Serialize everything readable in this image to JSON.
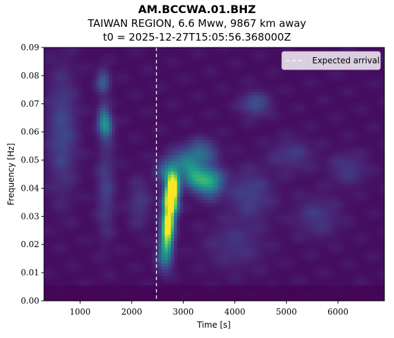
{
  "chart_data": {
    "type": "heatmap",
    "title": "AM.BCCWA.01.BHZ",
    "subtitle_lines": [
      "TAIWAN REGION, 6.6 Mww, 9867 km away",
      "t0 = 2025-12-27T15:05:56.368000Z"
    ],
    "xlabel": "Time [s]",
    "ylabel": "Frequency [Hz]",
    "xlim": [
      300,
      6900
    ],
    "ylim": [
      0,
      0.09
    ],
    "x_ticks": [
      1000,
      2000,
      3000,
      4000,
      5000,
      6000
    ],
    "x_tick_labels": [
      "1000",
      "2000",
      "3000",
      "4000",
      "5000",
      "6000"
    ],
    "y_ticks": [
      0,
      0.01,
      0.02,
      0.03,
      0.04,
      0.05,
      0.06,
      0.07,
      0.08,
      0.09
    ],
    "y_tick_labels": [
      "0.00",
      "0.01",
      "0.02",
      "0.03",
      "0.04",
      "0.05",
      "0.06",
      "0.07",
      "0.08",
      "0.09"
    ],
    "colormap": "viridis",
    "background_color": "#440154",
    "expected_arrival": {
      "label": "Expected arrival",
      "time": 2480,
      "color": "#ffffff",
      "style": "dashed"
    },
    "legend_position": "upper-right",
    "energy_blobs": [
      {
        "t": 2800,
        "f": 0.0415,
        "st": 90,
        "sf": 0.0035,
        "amp": 1.0
      },
      {
        "t": 2760,
        "f": 0.0385,
        "st": 70,
        "sf": 0.002,
        "amp": 0.75
      },
      {
        "t": 2720,
        "f": 0.0355,
        "st": 90,
        "sf": 0.002,
        "amp": 0.55
      },
      {
        "t": 2780,
        "f": 0.0335,
        "st": 90,
        "sf": 0.002,
        "amp": 0.6
      },
      {
        "t": 2720,
        "f": 0.029,
        "st": 80,
        "sf": 0.003,
        "amp": 0.8
      },
      {
        "t": 2690,
        "f": 0.0245,
        "st": 80,
        "sf": 0.0035,
        "amp": 0.72
      },
      {
        "t": 2660,
        "f": 0.019,
        "st": 90,
        "sf": 0.003,
        "amp": 0.4
      },
      {
        "t": 2640,
        "f": 0.014,
        "st": 110,
        "sf": 0.003,
        "amp": 0.22
      },
      {
        "t": 3500,
        "f": 0.0425,
        "st": 180,
        "sf": 0.0035,
        "amp": 0.55
      },
      {
        "t": 3200,
        "f": 0.0445,
        "st": 150,
        "sf": 0.003,
        "amp": 0.42
      },
      {
        "t": 3000,
        "f": 0.0495,
        "st": 200,
        "sf": 0.003,
        "amp": 0.3
      },
      {
        "t": 3350,
        "f": 0.053,
        "st": 200,
        "sf": 0.003,
        "amp": 0.28
      },
      {
        "t": 2650,
        "f": 0.046,
        "st": 120,
        "sf": 0.003,
        "amp": 0.25
      },
      {
        "t": 1500,
        "f": 0.062,
        "st": 90,
        "sf": 0.003,
        "amp": 0.38
      },
      {
        "t": 1450,
        "f": 0.078,
        "st": 90,
        "sf": 0.003,
        "amp": 0.26
      },
      {
        "t": 1450,
        "f": 0.066,
        "st": 80,
        "sf": 0.003,
        "amp": 0.22
      },
      {
        "t": 650,
        "f": 0.06,
        "st": 200,
        "sf": 0.015,
        "amp": 0.17
      },
      {
        "t": 1500,
        "f": 0.04,
        "st": 120,
        "sf": 0.012,
        "amp": 0.14
      },
      {
        "t": 4400,
        "f": 0.07,
        "st": 200,
        "sf": 0.003,
        "amp": 0.2
      },
      {
        "t": 4300,
        "f": 0.038,
        "st": 300,
        "sf": 0.006,
        "amp": 0.15
      },
      {
        "t": 5100,
        "f": 0.052,
        "st": 300,
        "sf": 0.004,
        "amp": 0.12
      },
      {
        "t": 5600,
        "f": 0.03,
        "st": 300,
        "sf": 0.005,
        "amp": 0.12
      },
      {
        "t": 6200,
        "f": 0.047,
        "st": 250,
        "sf": 0.004,
        "amp": 0.12
      },
      {
        "t": 2150,
        "f": 0.035,
        "st": 150,
        "sf": 0.006,
        "amp": 0.12
      },
      {
        "t": 4000,
        "f": 0.02,
        "st": 400,
        "sf": 0.006,
        "amp": 0.1
      }
    ]
  }
}
